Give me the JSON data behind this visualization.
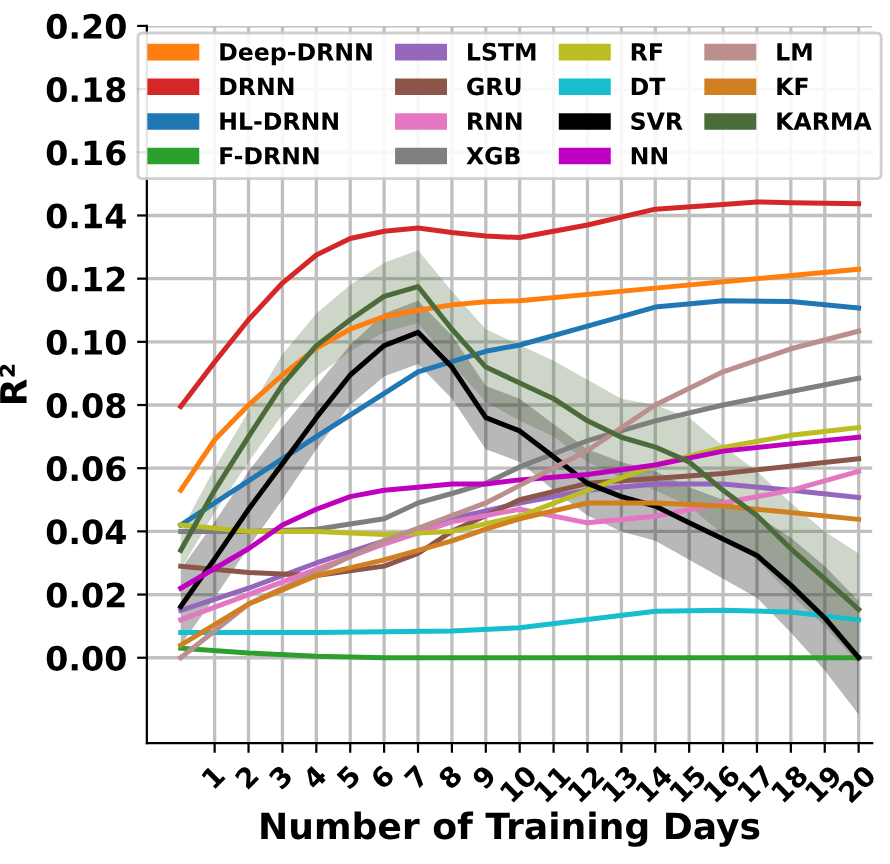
{
  "chart_data": {
    "type": "line",
    "xlabel": "Number of Training Days",
    "ylabel": "R²",
    "xlim": [
      -1,
      20.4
    ],
    "ylim": [
      -0.027,
      0.2
    ],
    "xticks": [
      1,
      2,
      3,
      4,
      5,
      6,
      7,
      8,
      9,
      10,
      11,
      12,
      13,
      14,
      15,
      16,
      17,
      18,
      19,
      20
    ],
    "yticks": [
      {
        "value": 0,
        "label": "0.00"
      },
      {
        "value": 0.02,
        "label": "0.02"
      },
      {
        "value": 0.04,
        "label": "0.04"
      },
      {
        "value": 0.06,
        "label": "0.06"
      },
      {
        "value": 0.08,
        "label": "0.08"
      },
      {
        "value": 0.1,
        "label": "0.10"
      },
      {
        "value": 0.12,
        "label": "0.12"
      },
      {
        "value": 0.14,
        "label": "0.14"
      },
      {
        "value": 0.16,
        "label": "0.16"
      },
      {
        "value": 0.18,
        "label": "0.18"
      },
      {
        "value": 0.2,
        "label": "0.20"
      }
    ],
    "grid": true,
    "legend": "top",
    "marker": "none",
    "line_style": "solid",
    "series": [
      {
        "name": "Deep-DRNN",
        "color": "#ff7f0e",
        "x": [
          0,
          1,
          2,
          3,
          4,
          5,
          6,
          7,
          8,
          9,
          10,
          14,
          20
        ],
        "values": [
          0.053,
          0.069,
          0.08,
          0.0895,
          0.098,
          0.104,
          0.108,
          0.11,
          0.1117,
          0.1127,
          0.113,
          0.117,
          0.123
        ]
      },
      {
        "name": "DRNN",
        "color": "#d62728",
        "x": [
          0,
          1,
          2,
          3,
          4,
          5,
          6,
          7,
          8,
          9,
          10,
          12,
          14,
          16,
          17,
          18,
          20
        ],
        "values": [
          0.0795,
          0.0936,
          0.107,
          0.1186,
          0.1275,
          0.1327,
          0.135,
          0.136,
          0.1346,
          0.1335,
          0.133,
          0.137,
          0.142,
          0.1435,
          0.1443,
          0.144,
          0.1437
        ]
      },
      {
        "name": "HL-DRNN",
        "color": "#1f77b4",
        "x": [
          0,
          2,
          4,
          7,
          9,
          10,
          12,
          14,
          16,
          18,
          20
        ],
        "values": [
          0.042,
          0.056,
          0.07,
          0.0905,
          0.097,
          0.099,
          0.105,
          0.111,
          0.113,
          0.1128,
          0.1107
        ]
      },
      {
        "name": "F-DRNN",
        "color": "#2ca02c",
        "x": [
          0,
          2,
          4,
          6,
          10,
          20
        ],
        "values": [
          0.003,
          0.0015,
          0.0005,
          0.0,
          0.0,
          0.0
        ]
      },
      {
        "name": "LSTM",
        "color": "#9467bd",
        "x": [
          0,
          2,
          4,
          6,
          8,
          10,
          12,
          14,
          16,
          18,
          20
        ],
        "values": [
          0.015,
          0.022,
          0.03,
          0.037,
          0.044,
          0.049,
          0.053,
          0.055,
          0.055,
          0.053,
          0.0507
        ]
      },
      {
        "name": "GRU",
        "color": "#8c564b",
        "x": [
          0,
          2,
          4,
          6,
          7,
          8,
          10,
          12,
          16,
          20
        ],
        "values": [
          0.029,
          0.027,
          0.026,
          0.029,
          0.033,
          0.04,
          0.05,
          0.0552,
          0.0583,
          0.063
        ]
      },
      {
        "name": "RNN",
        "color": "#e377c2",
        "x": [
          0,
          2,
          4,
          6,
          8,
          10,
          12,
          14,
          16,
          18,
          20
        ],
        "values": [
          0.012,
          0.02,
          0.028,
          0.036,
          0.043,
          0.047,
          0.0427,
          0.0448,
          0.049,
          0.053,
          0.059
        ]
      },
      {
        "name": "XGB",
        "color": "#7f7f7f",
        "x": [
          0,
          2,
          4,
          6,
          7,
          8,
          9,
          10,
          12,
          14,
          16,
          18,
          20
        ],
        "values": [
          0.04,
          0.04,
          0.0407,
          0.044,
          0.049,
          0.052,
          0.0552,
          0.0604,
          0.0687,
          0.075,
          0.08,
          0.0843,
          0.0885
        ]
      },
      {
        "name": "RF",
        "color": "#bcbd22",
        "x": [
          0,
          2,
          4,
          6,
          8,
          10,
          12,
          14,
          16,
          18,
          20
        ],
        "values": [
          0.042,
          0.04,
          0.04,
          0.039,
          0.04,
          0.0448,
          0.053,
          0.061,
          0.0666,
          0.0704,
          0.0729
        ]
      },
      {
        "name": "DT",
        "color": "#17becf",
        "x": [
          0,
          4,
          8,
          10,
          14,
          16,
          18,
          20
        ],
        "values": [
          0.008,
          0.008,
          0.0085,
          0.0095,
          0.0147,
          0.015,
          0.0145,
          0.012
        ]
      },
      {
        "name": "SVR",
        "color": "#000000",
        "x": [
          0,
          1,
          2,
          3,
          4,
          5,
          6,
          7,
          8,
          9,
          10,
          11,
          12,
          13,
          14,
          15,
          16,
          17,
          18,
          19,
          20
        ],
        "values": [
          0.0162,
          0.0313,
          0.047,
          0.0614,
          0.076,
          0.0895,
          0.0988,
          0.103,
          0.092,
          0.076,
          0.0718,
          0.0636,
          0.0552,
          0.051,
          0.048,
          0.0427,
          0.0376,
          0.0324,
          0.023,
          0.0126,
          0.0
        ],
        "lower": [
          0.004,
          0.019,
          0.035,
          0.05,
          0.066,
          0.08,
          0.089,
          0.093,
          0.082,
          0.066,
          0.062,
          0.053,
          0.045,
          0.04,
          0.037,
          0.031,
          0.025,
          0.019,
          0.008,
          -0.004,
          -0.018
        ],
        "upper": [
          0.028,
          0.043,
          0.059,
          0.073,
          0.086,
          0.099,
          0.109,
          0.113,
          0.102,
          0.086,
          0.082,
          0.074,
          0.066,
          0.062,
          0.059,
          0.054,
          0.05,
          0.045,
          0.038,
          0.029,
          0.018
        ]
      },
      {
        "name": "NN",
        "color": "#c000c0",
        "x": [
          0,
          2,
          3,
          4,
          5,
          6,
          7,
          8,
          9,
          10,
          12,
          14,
          16,
          18,
          20
        ],
        "values": [
          0.022,
          0.0345,
          0.042,
          0.047,
          0.051,
          0.053,
          0.054,
          0.055,
          0.055,
          0.0563,
          0.058,
          0.061,
          0.0654,
          0.0677,
          0.0698
        ]
      },
      {
        "name": "LM",
        "color": "#bc8f8f",
        "x": [
          0,
          2,
          4,
          6,
          8,
          9,
          12,
          14,
          16,
          18,
          20
        ],
        "values": [
          0.0,
          0.017,
          0.027,
          0.037,
          0.045,
          0.049,
          0.0656,
          0.08,
          0.0905,
          0.0978,
          0.1034
        ]
      },
      {
        "name": "KF",
        "color": "#d08020",
        "x": [
          0,
          2,
          4,
          6,
          8,
          9,
          10,
          12,
          14,
          16,
          18,
          20
        ],
        "values": [
          0.004,
          0.017,
          0.026,
          0.031,
          0.037,
          0.0407,
          0.044,
          0.049,
          0.049,
          0.048,
          0.046,
          0.0438
        ]
      },
      {
        "name": "KARMA",
        "color": "#4b6b3a",
        "x": [
          0,
          1,
          2,
          3,
          4,
          5,
          6,
          7,
          8,
          9,
          10,
          11,
          12,
          13,
          14,
          15,
          16,
          17,
          18,
          19,
          20
        ],
        "values": [
          0.034,
          0.053,
          0.07,
          0.0864,
          0.0988,
          0.107,
          0.1144,
          0.1175,
          0.104,
          0.092,
          0.087,
          0.082,
          0.075,
          0.0698,
          0.0667,
          0.062,
          0.053,
          0.045,
          0.0345,
          0.025,
          0.0153
        ],
        "lower": [
          0.028,
          0.046,
          0.062,
          0.077,
          0.089,
          0.097,
          0.103,
          0.106,
          0.093,
          0.081,
          0.075,
          0.07,
          0.062,
          0.057,
          0.053,
          0.048,
          0.039,
          0.031,
          0.02,
          0.01,
          -0.002
        ],
        "upper": [
          0.04,
          0.06,
          0.078,
          0.096,
          0.109,
          0.118,
          0.125,
          0.129,
          0.116,
          0.104,
          0.099,
          0.094,
          0.088,
          0.082,
          0.08,
          0.076,
          0.067,
          0.059,
          0.049,
          0.04,
          0.033
        ]
      }
    ]
  }
}
